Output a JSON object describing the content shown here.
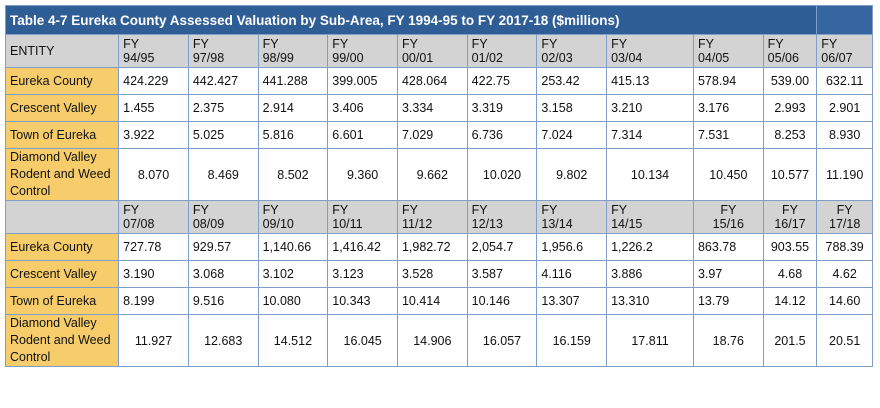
{
  "title": "Table 4-7 Eureka County Assessed Valuation by Sub-Area, FY 1994-95 to FY 2017-18 ($millions)",
  "entity_header": "ENTITY",
  "colors": {
    "title_bg": "#2f5d95",
    "label_bg": "#f6cd6a",
    "header_bg": "#d3d3d3",
    "border": "#7f9fc8"
  },
  "block1": {
    "years": [
      "FY 94/95",
      "FY 97/98",
      "FY 98/99",
      "FY 99/00",
      "FY 00/01",
      "FY 01/02",
      "FY 02/03",
      "FY 03/04",
      "FY 04/05",
      "FY 05/06",
      "FY 06/07"
    ],
    "rows": [
      {
        "entity": "Eureka County",
        "values": [
          "424.229",
          "442.427",
          "441.288",
          "399.005",
          "428.064",
          "422.75",
          "253.42",
          "415.13",
          "578.94",
          "539.00",
          "632.11"
        ]
      },
      {
        "entity": "Crescent Valley",
        "values": [
          "1.455",
          "2.375",
          "2.914",
          "3.406",
          "3.334",
          "3.319",
          "3.158",
          "3.210",
          "3.176",
          "2.993",
          "2.901"
        ]
      },
      {
        "entity": "Town of Eureka",
        "values": [
          "3.922",
          "5.025",
          "5.816",
          "6.601",
          "7.029",
          "6.736",
          "7.024",
          "7.314",
          "7.531",
          "8.253",
          "8.930"
        ]
      },
      {
        "entity": "Diamond Valley Rodent and Weed Control",
        "values": [
          "8.070",
          "8.469",
          "8.502",
          "9.360",
          "9.662",
          "10.020",
          "9.802",
          "10.134",
          "10.450",
          "10.577",
          "11.190"
        ]
      }
    ]
  },
  "block2": {
    "years": [
      "FY 07/08",
      "FY 08/09",
      "FY 09/10",
      "FY 10/11",
      "FY 11/12",
      "FY 12/13",
      "FY 13/14",
      "FY 14/15",
      "FY 15/16",
      "FY 16/17",
      "FY 17/18"
    ],
    "rows": [
      {
        "entity": "Eureka County",
        "values": [
          "727.78",
          "929.57",
          "1,140.66",
          "1,416.42",
          "1,982.72",
          "2,054.7",
          "1,956.6",
          "1,226.2",
          "863.78",
          "903.55",
          "788.39"
        ]
      },
      {
        "entity": "Crescent Valley",
        "values": [
          "3.190",
          "3.068",
          "3.102",
          "3.123",
          "3.528",
          "3.587",
          "4.116",
          "3.886",
          "3.97",
          "4.68",
          "4.62"
        ]
      },
      {
        "entity": "Town of Eureka",
        "values": [
          "8.199",
          "9.516",
          "10.080",
          "10.343",
          "10.414",
          "10.146",
          "13.307",
          "13.310",
          "13.79",
          "14.12",
          "14.60"
        ]
      },
      {
        "entity": "Diamond Valley Rodent and Weed Control",
        "values": [
          "11.927",
          "12.683",
          "14.512",
          "16.045",
          "14.906",
          "16.057",
          "16.159",
          "17.811",
          "18.76",
          "201.5",
          "20.51"
        ]
      }
    ]
  }
}
